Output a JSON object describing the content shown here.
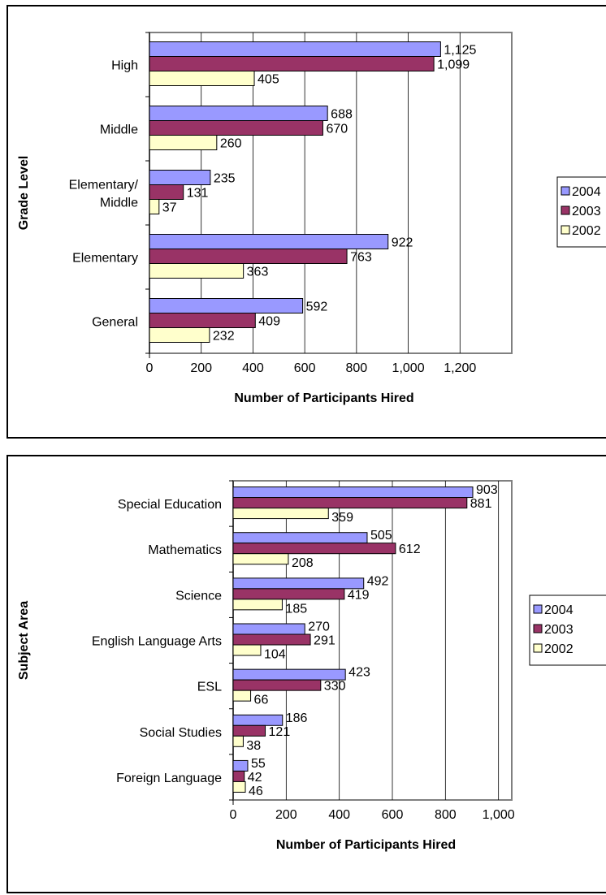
{
  "chart_data": [
    {
      "type": "bar",
      "orientation": "horizontal",
      "title": "",
      "xlabel": "Number of Participants Hired",
      "ylabel": "Grade Level",
      "categories": [
        "High",
        "Middle",
        "Elementary/\nMiddle",
        "Elementary",
        "General"
      ],
      "series": [
        {
          "name": "2004",
          "values": [
            1125,
            688,
            235,
            922,
            592
          ],
          "labels": [
            "1,125",
            "688",
            "235",
            "922",
            "592"
          ]
        },
        {
          "name": "2003",
          "values": [
            1099,
            670,
            131,
            763,
            409
          ],
          "labels": [
            "1,099",
            "670",
            "131",
            "763",
            "409"
          ]
        },
        {
          "name": "2002",
          "values": [
            405,
            260,
            37,
            363,
            232
          ],
          "labels": [
            "405",
            "260",
            "37",
            "363",
            "232"
          ]
        }
      ],
      "xlim": [
        0,
        1400
      ],
      "xticks": [
        0,
        200,
        400,
        600,
        800,
        1000,
        1200
      ],
      "xtick_labels": [
        "0",
        "200",
        "400",
        "600",
        "800",
        "1,000",
        "1,200"
      ],
      "grid": true,
      "legend": "right"
    },
    {
      "type": "bar",
      "orientation": "horizontal",
      "title": "",
      "xlabel": "Number of Participants Hired",
      "ylabel": "Subject Area",
      "categories": [
        "Special Education",
        "Mathematics",
        "Science",
        "English Language Arts",
        "ESL",
        "Social Studies",
        "Foreign Language"
      ],
      "series": [
        {
          "name": "2004",
          "values": [
            903,
            505,
            492,
            270,
            423,
            186,
            55
          ],
          "labels": [
            "903",
            "505",
            "492",
            "270",
            "423",
            "186",
            "55"
          ]
        },
        {
          "name": "2003",
          "values": [
            881,
            612,
            419,
            291,
            330,
            121,
            42
          ],
          "labels": [
            "881",
            "612",
            "419",
            "291",
            "330",
            "121",
            "42"
          ]
        },
        {
          "name": "2002",
          "values": [
            359,
            208,
            185,
            104,
            66,
            38,
            46
          ],
          "labels": [
            "359",
            "208",
            "185",
            "104",
            "66",
            "38",
            "46"
          ]
        }
      ],
      "xlim": [
        0,
        1050
      ],
      "xticks": [
        0,
        200,
        400,
        600,
        800,
        1000
      ],
      "xtick_labels": [
        "0",
        "200",
        "400",
        "600",
        "800",
        "1,000"
      ],
      "grid": true,
      "legend": "right"
    }
  ],
  "colors": {
    "series_2004": "#9999ff",
    "series_2003": "#993366",
    "series_2002": "#ffffcc",
    "plot_border": "#808080",
    "gridline": "#000000"
  }
}
